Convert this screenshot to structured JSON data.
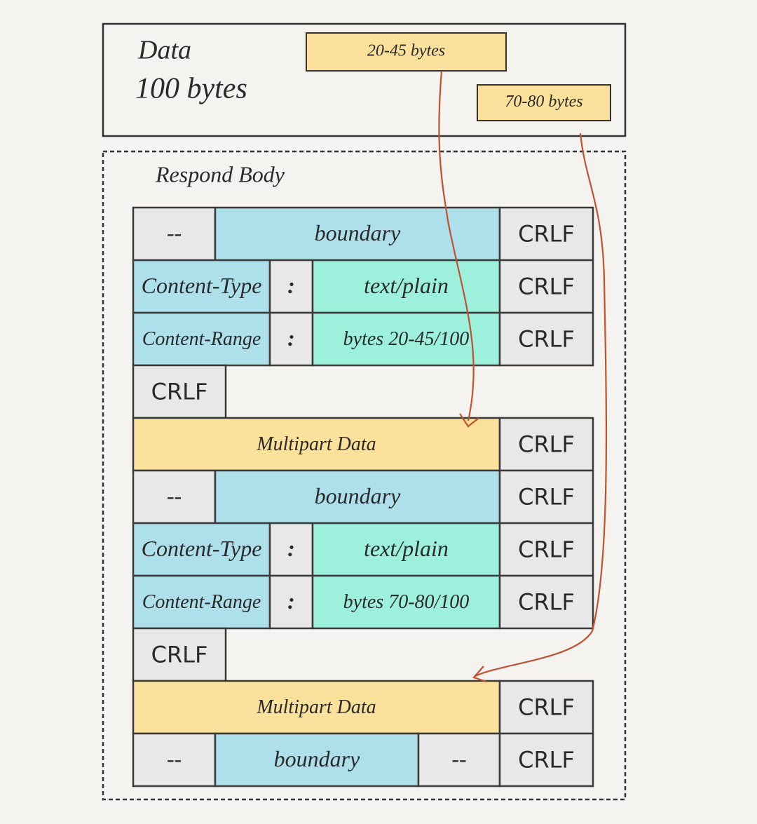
{
  "data_box": {
    "title": "Data",
    "size": "100 bytes",
    "ranges": [
      {
        "label": "20-45 bytes",
        "color": "#fbe19b"
      },
      {
        "label": "70-80 bytes",
        "color": "#fbe19b"
      }
    ]
  },
  "body": {
    "title": "Respond Body",
    "rows": [
      {
        "cells": [
          {
            "text": "--",
            "color": "#e8e8e8"
          },
          {
            "text": "boundary",
            "color": "#aee0ec"
          },
          {
            "text": "CRLF",
            "color": "#e8e8e8"
          }
        ]
      },
      {
        "cells": [
          {
            "text": "Content-Type",
            "color": "#aee0ec"
          },
          {
            "text": ":",
            "color": "#e8e8e8"
          },
          {
            "text": "text/plain",
            "color": "#9cf0dc"
          },
          {
            "text": "CRLF",
            "color": "#e8e8e8"
          }
        ]
      },
      {
        "cells": [
          {
            "text": "Content-Range",
            "color": "#aee0ec"
          },
          {
            "text": ":",
            "color": "#e8e8e8"
          },
          {
            "text": "bytes 20-45/100",
            "color": "#9cf0dc"
          },
          {
            "text": "CRLF",
            "color": "#e8e8e8"
          }
        ]
      },
      {
        "cells": [
          {
            "text": "CRLF",
            "color": "#e8e8e8"
          }
        ]
      },
      {
        "cells": [
          {
            "text": "Multipart Data",
            "color": "#fbe19b"
          },
          {
            "text": "CRLF",
            "color": "#e8e8e8"
          }
        ]
      },
      {
        "cells": [
          {
            "text": "--",
            "color": "#e8e8e8"
          },
          {
            "text": "boundary",
            "color": "#aee0ec"
          },
          {
            "text": "CRLF",
            "color": "#e8e8e8"
          }
        ]
      },
      {
        "cells": [
          {
            "text": "Content-Type",
            "color": "#aee0ec"
          },
          {
            "text": ":",
            "color": "#e8e8e8"
          },
          {
            "text": "text/plain",
            "color": "#9cf0dc"
          },
          {
            "text": "CRLF",
            "color": "#e8e8e8"
          }
        ]
      },
      {
        "cells": [
          {
            "text": "Content-Range",
            "color": "#aee0ec"
          },
          {
            "text": ":",
            "color": "#e8e8e8"
          },
          {
            "text": "bytes 70-80/100",
            "color": "#9cf0dc"
          },
          {
            "text": "CRLF",
            "color": "#e8e8e8"
          }
        ]
      },
      {
        "cells": [
          {
            "text": "CRLF",
            "color": "#e8e8e8"
          }
        ]
      },
      {
        "cells": [
          {
            "text": "Multipart Data",
            "color": "#fbe19b"
          },
          {
            "text": "CRLF",
            "color": "#e8e8e8"
          }
        ]
      },
      {
        "cells": [
          {
            "text": "--",
            "color": "#e8e8e8"
          },
          {
            "text": "boundary",
            "color": "#aee0ec"
          },
          {
            "text": "--",
            "color": "#e8e8e8"
          },
          {
            "text": "CRLF",
            "color": "#e8e8e8"
          }
        ]
      }
    ]
  }
}
